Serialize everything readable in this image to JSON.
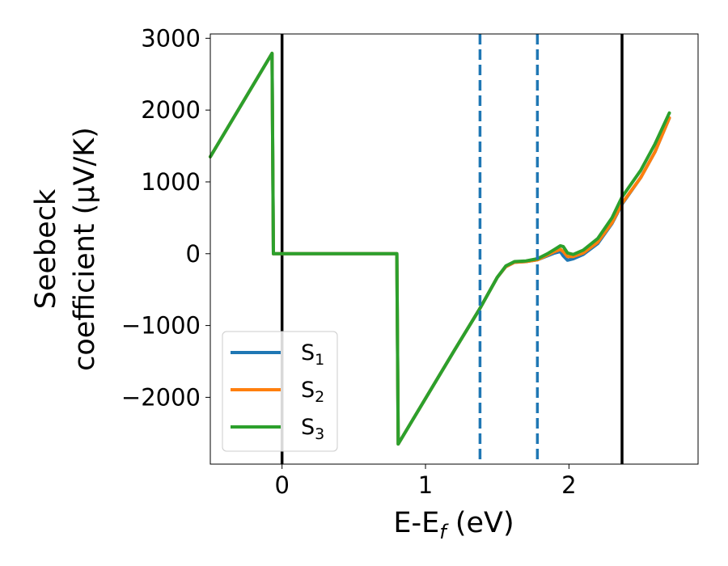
{
  "chart_data": {
    "type": "line",
    "xlabel": "E-E_f (eV)",
    "ylabel": "Seebeck coefficient  (μV/K)",
    "xlim": [
      -0.5,
      2.9
    ],
    "ylim": [
      -2930,
      3060
    ],
    "x_ticks": [
      0,
      1,
      2
    ],
    "y_ticks": [
      -2000,
      -1000,
      0,
      1000,
      2000,
      3000
    ],
    "x_tick_labels": [
      "0",
      "1",
      "2"
    ],
    "y_tick_labels": [
      "−2000",
      "−1000",
      "0",
      "1000",
      "2000",
      "3000"
    ],
    "grid": false,
    "legend_placement": "lower-left",
    "vlines": [
      {
        "x": 0.0,
        "style": "solid",
        "color": "#000000"
      },
      {
        "x": 2.37,
        "style": "solid",
        "color": "#000000"
      },
      {
        "x": 1.38,
        "style": "dashed",
        "color": "#1f77b4"
      },
      {
        "x": 1.78,
        "style": "dashed",
        "color": "#1f77b4"
      }
    ],
    "series": [
      {
        "name": "S_1",
        "label_base": "S",
        "label_sub": "1",
        "color": "#1f77b4",
        "points": [
          [
            -0.5,
            1350
          ],
          [
            -0.07,
            2790
          ],
          [
            -0.06,
            0
          ],
          [
            0.8,
            0
          ],
          [
            0.81,
            -2650
          ],
          [
            1.2,
            -1350
          ],
          [
            1.38,
            -760
          ],
          [
            1.5,
            -330
          ],
          [
            1.56,
            -180
          ],
          [
            1.62,
            -120
          ],
          [
            1.7,
            -110
          ],
          [
            1.78,
            -85
          ],
          [
            1.85,
            -30
          ],
          [
            1.9,
            10
          ],
          [
            1.94,
            30
          ],
          [
            1.96,
            -30
          ],
          [
            1.99,
            -90
          ],
          [
            2.03,
            -70
          ],
          [
            2.1,
            -10
          ],
          [
            2.2,
            140
          ],
          [
            2.3,
            420
          ],
          [
            2.37,
            690
          ],
          [
            2.5,
            1060
          ],
          [
            2.6,
            1420
          ],
          [
            2.7,
            1890
          ]
        ]
      },
      {
        "name": "S_2",
        "label_base": "S",
        "label_sub": "2",
        "color": "#ff7f0e",
        "points": [
          [
            -0.5,
            1350
          ],
          [
            -0.07,
            2790
          ],
          [
            -0.06,
            0
          ],
          [
            0.8,
            0
          ],
          [
            0.81,
            -2650
          ],
          [
            1.2,
            -1350
          ],
          [
            1.38,
            -760
          ],
          [
            1.5,
            -330
          ],
          [
            1.56,
            -180
          ],
          [
            1.62,
            -120
          ],
          [
            1.7,
            -110
          ],
          [
            1.78,
            -85
          ],
          [
            1.85,
            -20
          ],
          [
            1.9,
            30
          ],
          [
            1.94,
            60
          ],
          [
            1.96,
            30
          ],
          [
            1.99,
            -40
          ],
          [
            2.03,
            -40
          ],
          [
            2.1,
            10
          ],
          [
            2.2,
            160
          ],
          [
            2.3,
            430
          ],
          [
            2.37,
            700
          ],
          [
            2.5,
            1060
          ],
          [
            2.6,
            1420
          ],
          [
            2.7,
            1890
          ]
        ]
      },
      {
        "name": "S_3",
        "label_base": "S",
        "label_sub": "3",
        "color": "#2ca02c",
        "points": [
          [
            -0.5,
            1350
          ],
          [
            -0.07,
            2790
          ],
          [
            -0.06,
            0
          ],
          [
            0.8,
            0
          ],
          [
            0.81,
            -2650
          ],
          [
            1.2,
            -1350
          ],
          [
            1.38,
            -760
          ],
          [
            1.5,
            -330
          ],
          [
            1.56,
            -170
          ],
          [
            1.62,
            -110
          ],
          [
            1.7,
            -100
          ],
          [
            1.78,
            -70
          ],
          [
            1.85,
            0
          ],
          [
            1.9,
            60
          ],
          [
            1.94,
            110
          ],
          [
            1.96,
            100
          ],
          [
            1.99,
            10
          ],
          [
            2.03,
            -10
          ],
          [
            2.1,
            50
          ],
          [
            2.2,
            210
          ],
          [
            2.3,
            500
          ],
          [
            2.37,
            790
          ],
          [
            2.5,
            1160
          ],
          [
            2.6,
            1530
          ],
          [
            2.7,
            1960
          ]
        ]
      }
    ]
  }
}
